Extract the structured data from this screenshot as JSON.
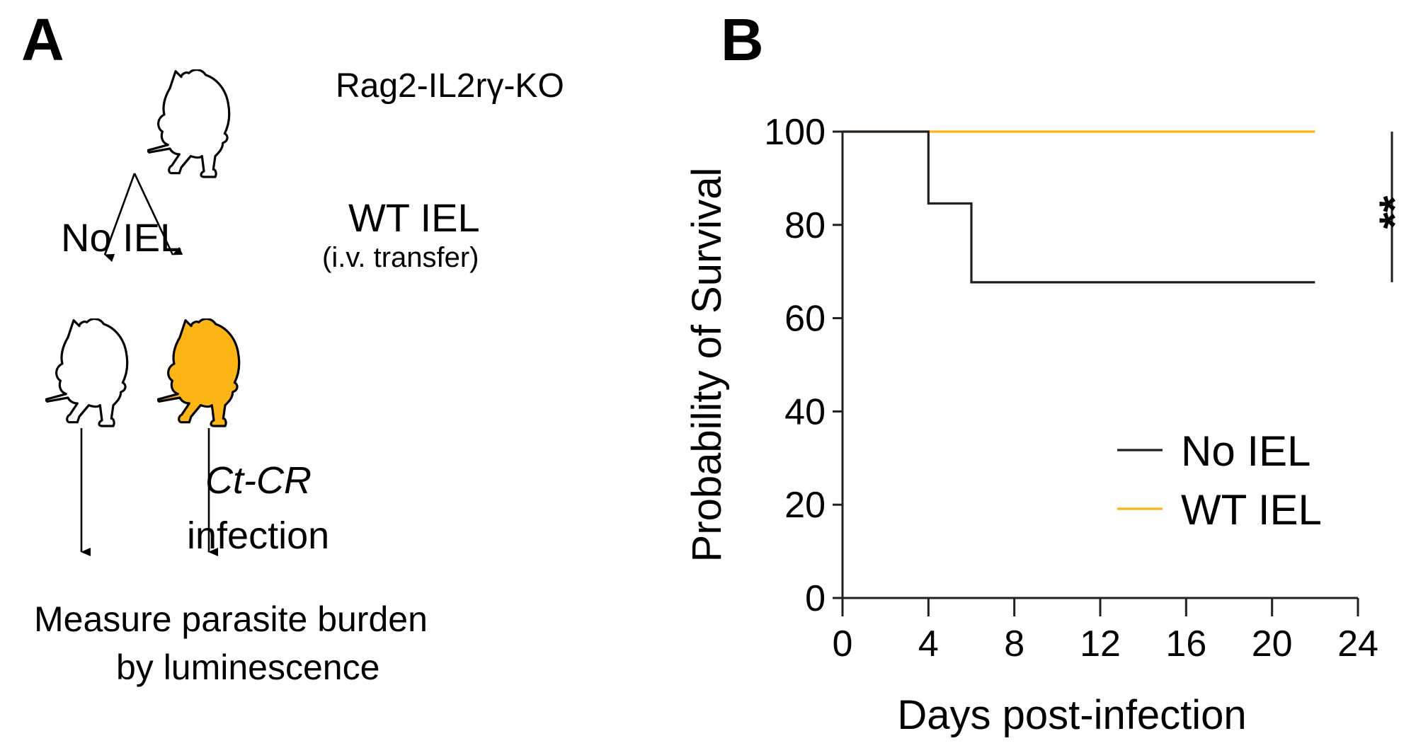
{
  "panel_a": {
    "letter": "A",
    "strain_label": "Rag2-IL2rγ-KO",
    "left_branch_label": "No IEL",
    "right_branch_label": "WT IEL",
    "right_branch_sublabel": "(i.v. transfer)",
    "infection_agent": "Ct-CR",
    "infection_word": "infection",
    "readout_line1": "Measure parasite burden",
    "readout_line2": "by luminescence",
    "mouse_fill_treated": "#FDB515",
    "icons": [
      "mouse-icon",
      "mouse-icon",
      "mouse-icon-filled",
      "arrow-icon"
    ]
  },
  "panel_b": {
    "letter": "B",
    "significance": "**"
  },
  "chart_data": {
    "type": "line",
    "subtype": "kaplan-meier-step",
    "title": "",
    "xlabel": "Days post-infection",
    "ylabel": "Probability of Survival",
    "xlim": [
      0,
      24
    ],
    "ylim": [
      0,
      100
    ],
    "xticks": [
      0,
      4,
      8,
      12,
      16,
      20,
      24
    ],
    "yticks": [
      0,
      20,
      40,
      60,
      80,
      100
    ],
    "grid": false,
    "legend_position": "bottom-right",
    "series": [
      {
        "name": "No IEL",
        "color": "#231F20",
        "x": [
          0,
          4,
          6,
          22
        ],
        "y": [
          100,
          84.6,
          67.7,
          67.7
        ]
      },
      {
        "name": "WT IEL",
        "color": "#FDB515",
        "x": [
          0,
          22
        ],
        "y": [
          100,
          100
        ]
      }
    ],
    "annotations": [
      {
        "text": "**",
        "type": "significance-bracket",
        "between": [
          "No IEL",
          "WT IEL"
        ]
      }
    ]
  }
}
